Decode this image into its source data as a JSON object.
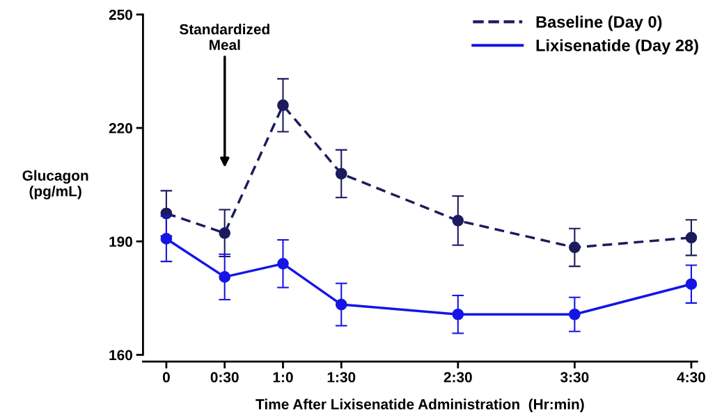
{
  "chart_data": {
    "type": "line",
    "xlabel": "Time After Lixisenatide Administration  (Hr:min)",
    "ylabel": "Glucagon\n(pg/mL)",
    "x": [
      0,
      0.5,
      1,
      1.5,
      2.5,
      3.5,
      4.5
    ],
    "series": [
      {
        "name": "Baseline (Day 0)",
        "color": "#1b1b5e",
        "line_style": "dashed",
        "values": [
          197.4,
          192.2,
          226.0,
          207.9,
          195.5,
          188.4,
          191.0
        ],
        "errors": [
          6,
          6.2,
          7,
          6.3,
          6.5,
          5,
          4.7
        ]
      },
      {
        "name": "Lixisenatide (Day 28)",
        "color": "#1515e6",
        "line_style": "solid",
        "values": [
          190.7,
          180.6,
          184.1,
          173.3,
          170.7,
          170.7,
          178.7
        ],
        "errors": [
          6,
          6,
          6.3,
          5.6,
          5,
          4.5,
          5
        ]
      }
    ],
    "xlim": [
      -0.2,
      4.55
    ],
    "xticks": [
      {
        "value": 0,
        "label": "0"
      },
      {
        "value": 0.5,
        "label": "0:30"
      },
      {
        "value": 1,
        "label": "1:0"
      },
      {
        "value": 1.5,
        "label": "1:30"
      },
      {
        "value": 2.5,
        "label": "2:30"
      },
      {
        "value": 3.5,
        "label": "3:30"
      },
      {
        "value": 4.5,
        "label": "4:30"
      }
    ],
    "ylim": [
      160,
      250
    ],
    "yticks": [
      160,
      190,
      220,
      250
    ],
    "annotations": [
      "Standardized\nMeal"
    ],
    "marker": "circle",
    "grid": false,
    "legend": "top right"
  }
}
